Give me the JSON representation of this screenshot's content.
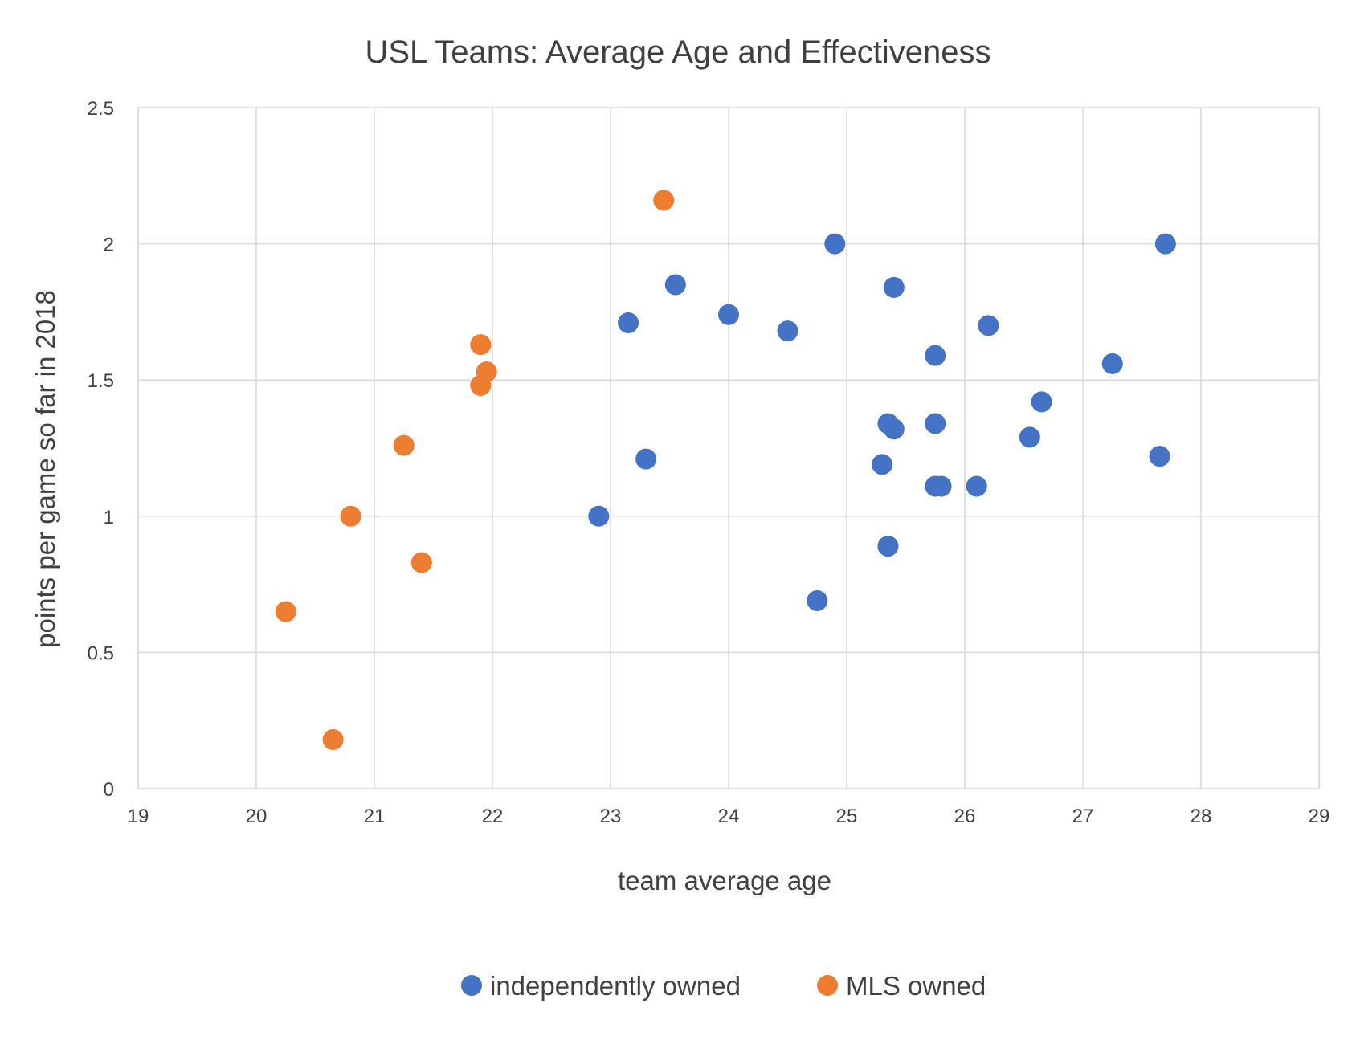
{
  "chart_data": {
    "type": "scatter",
    "title": "USL Teams: Average Age and Effectiveness",
    "xlabel": "team average age",
    "ylabel": "points per game so far in 2018",
    "xlim": [
      19,
      29
    ],
    "ylim": [
      0,
      2.5
    ],
    "x_ticks": [
      "19",
      "20",
      "21",
      "22",
      "23",
      "24",
      "25",
      "26",
      "27",
      "28",
      "29"
    ],
    "y_ticks": [
      "0",
      "0.5",
      "1",
      "1.5",
      "2",
      "2.5"
    ],
    "grid": true,
    "legend_position": "bottom",
    "series": [
      {
        "name": "independently owned",
        "color": "#4472c4",
        "points": [
          {
            "x": 22.9,
            "y": 1.0
          },
          {
            "x": 23.15,
            "y": 1.71
          },
          {
            "x": 23.3,
            "y": 1.21
          },
          {
            "x": 23.55,
            "y": 1.85
          },
          {
            "x": 24.0,
            "y": 1.74
          },
          {
            "x": 24.5,
            "y": 1.68
          },
          {
            "x": 24.75,
            "y": 0.69
          },
          {
            "x": 24.9,
            "y": 2.0
          },
          {
            "x": 25.3,
            "y": 1.19
          },
          {
            "x": 25.35,
            "y": 0.89
          },
          {
            "x": 25.35,
            "y": 1.34
          },
          {
            "x": 25.4,
            "y": 1.32
          },
          {
            "x": 25.4,
            "y": 1.84
          },
          {
            "x": 25.75,
            "y": 1.59
          },
          {
            "x": 25.75,
            "y": 1.34
          },
          {
            "x": 25.75,
            "y": 1.11
          },
          {
            "x": 25.8,
            "y": 1.11
          },
          {
            "x": 26.1,
            "y": 1.11
          },
          {
            "x": 26.2,
            "y": 1.7
          },
          {
            "x": 26.55,
            "y": 1.29
          },
          {
            "x": 26.65,
            "y": 1.42
          },
          {
            "x": 27.25,
            "y": 1.56
          },
          {
            "x": 27.65,
            "y": 1.22
          },
          {
            "x": 27.7,
            "y": 2.0
          }
        ]
      },
      {
        "name": "MLS owned",
        "color": "#ed7d31",
        "points": [
          {
            "x": 20.25,
            "y": 0.65
          },
          {
            "x": 20.65,
            "y": 0.18
          },
          {
            "x": 20.8,
            "y": 1.0
          },
          {
            "x": 21.25,
            "y": 1.26
          },
          {
            "x": 21.4,
            "y": 0.83
          },
          {
            "x": 21.9,
            "y": 1.48
          },
          {
            "x": 21.9,
            "y": 1.63
          },
          {
            "x": 21.95,
            "y": 1.53
          },
          {
            "x": 23.45,
            "y": 2.16
          }
        ]
      }
    ]
  }
}
